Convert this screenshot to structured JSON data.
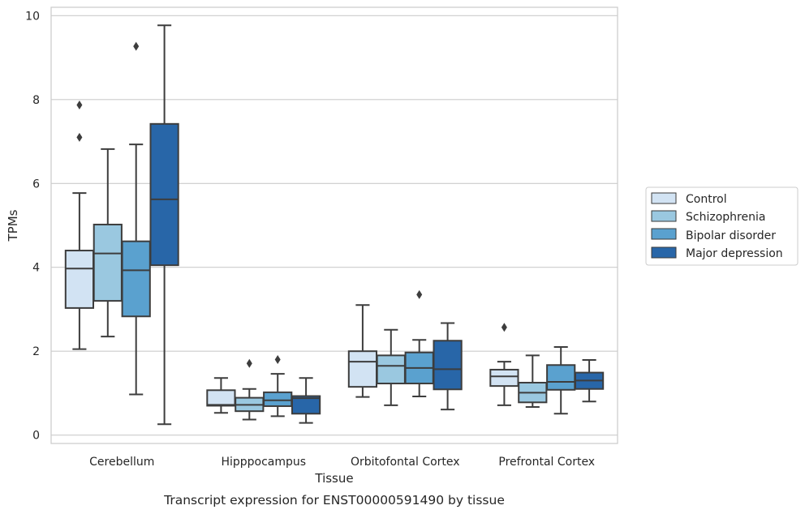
{
  "chart_data": {
    "type": "box",
    "caption": "Transcript expression for ENST00000591490 by tissue",
    "xlabel": "Tissue",
    "ylabel": "TPMs",
    "ylim": [
      -0.2,
      10.2
    ],
    "yticks": [
      0,
      2,
      4,
      6,
      8,
      10
    ],
    "grid": "horizontal",
    "legend_position": "right",
    "categories": [
      "Cerebellum",
      "Hipppocampus",
      "Orbitofontal Cortex",
      "Prefrontal Cortex"
    ],
    "series": [
      {
        "name": "Control",
        "color": "#d2e3f3",
        "boxes": [
          {
            "whisker_low": 2.05,
            "q1": 3.03,
            "median": 3.97,
            "q3": 4.4,
            "whisker_high": 5.77,
            "outliers": [
              7.1,
              7.87
            ]
          },
          {
            "whisker_low": 0.53,
            "q1": 0.7,
            "median": 0.72,
            "q3": 1.07,
            "whisker_high": 1.36,
            "outliers": []
          },
          {
            "whisker_low": 0.91,
            "q1": 1.15,
            "median": 1.75,
            "q3": 2.0,
            "whisker_high": 3.1,
            "outliers": []
          },
          {
            "whisker_low": 0.71,
            "q1": 1.17,
            "median": 1.4,
            "q3": 1.56,
            "whisker_high": 1.75,
            "outliers": [
              2.57
            ]
          }
        ]
      },
      {
        "name": "Schizophrenia",
        "color": "#9ac8e0",
        "boxes": [
          {
            "whisker_low": 2.35,
            "q1": 3.2,
            "median": 4.33,
            "q3": 5.02,
            "whisker_high": 6.82,
            "outliers": []
          },
          {
            "whisker_low": 0.37,
            "q1": 0.57,
            "median": 0.72,
            "q3": 0.89,
            "whisker_high": 1.1,
            "outliers": [
              1.71
            ]
          },
          {
            "whisker_low": 0.71,
            "q1": 1.23,
            "median": 1.65,
            "q3": 1.9,
            "whisker_high": 2.51,
            "outliers": []
          },
          {
            "whisker_low": 0.67,
            "q1": 0.78,
            "median": 1.01,
            "q3": 1.25,
            "whisker_high": 1.9,
            "outliers": []
          }
        ]
      },
      {
        "name": "Bipolar disorder",
        "color": "#5aa1cf",
        "boxes": [
          {
            "whisker_low": 0.97,
            "q1": 2.83,
            "median": 3.93,
            "q3": 4.62,
            "whisker_high": 6.93,
            "outliers": [
              9.27
            ]
          },
          {
            "whisker_low": 0.45,
            "q1": 0.69,
            "median": 0.83,
            "q3": 1.02,
            "whisker_high": 1.46,
            "outliers": [
              1.8
            ]
          },
          {
            "whisker_low": 0.92,
            "q1": 1.23,
            "median": 1.6,
            "q3": 1.97,
            "whisker_high": 2.27,
            "outliers": [
              3.35
            ]
          },
          {
            "whisker_low": 0.51,
            "q1": 1.08,
            "median": 1.27,
            "q3": 1.67,
            "whisker_high": 2.1,
            "outliers": []
          }
        ]
      },
      {
        "name": "Major depression",
        "color": "#2866a8",
        "boxes": [
          {
            "whisker_low": 0.26,
            "q1": 4.05,
            "median": 5.62,
            "q3": 7.42,
            "whisker_high": 9.77,
            "outliers": []
          },
          {
            "whisker_low": 0.29,
            "q1": 0.51,
            "median": 0.88,
            "q3": 0.93,
            "whisker_high": 1.36,
            "outliers": []
          },
          {
            "whisker_low": 0.61,
            "q1": 1.09,
            "median": 1.57,
            "q3": 2.25,
            "whisker_high": 2.67,
            "outliers": []
          },
          {
            "whisker_low": 0.8,
            "q1": 1.1,
            "median": 1.3,
            "q3": 1.49,
            "whisker_high": 1.79,
            "outliers": []
          }
        ]
      }
    ]
  },
  "legend": {
    "items": [
      {
        "label": "Control",
        "color": "#d2e3f3"
      },
      {
        "label": "Schizophrenia",
        "color": "#9ac8e0"
      },
      {
        "label": "Bipolar disorder",
        "color": "#5aa1cf"
      },
      {
        "label": "Major depression",
        "color": "#2866a8"
      }
    ]
  }
}
